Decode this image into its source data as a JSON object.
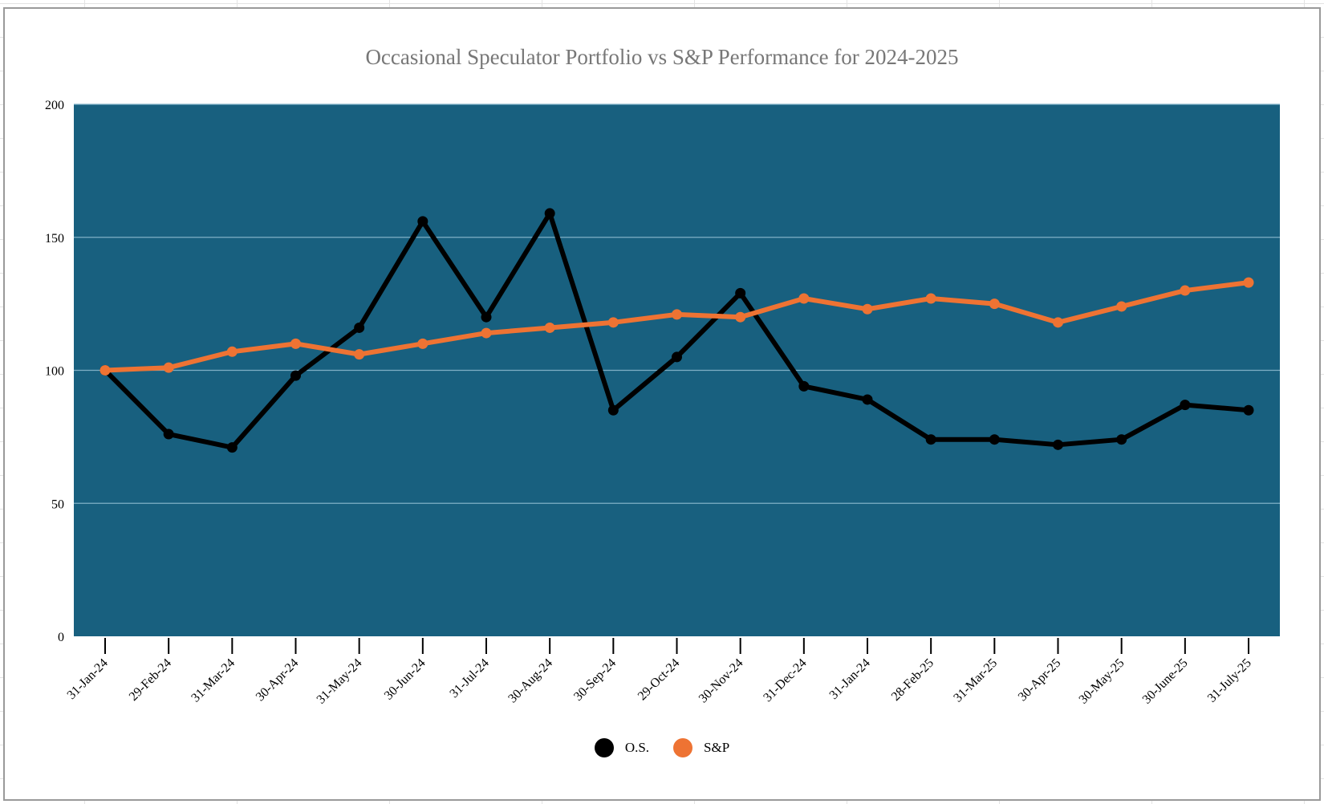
{
  "chart_data": {
    "type": "line",
    "title": "Occasional Speculator Portfolio vs S&P Performance for 2024-2025",
    "xlabel": "",
    "ylabel": "",
    "ylim": [
      0,
      200
    ],
    "yticks": [
      0,
      50,
      100,
      150,
      200
    ],
    "grid": true,
    "legend_position": "bottom",
    "plot_background": "#18607f",
    "categories": [
      "31-Jan-24",
      "29-Feb-24",
      "31-Mar-24",
      "30-Apr-24",
      "31-May-24",
      "30-Jun-24",
      "31-Jul-24",
      "30-Aug-24",
      "30-Sep-24",
      "29-Oct-24",
      "30-Nov-24",
      "31-Dec-24",
      "31-Jan-24",
      "28-Feb-25",
      "31-Mar-25",
      "30-Apr-25",
      "30-May-25",
      "30-June-25",
      "31-July-25"
    ],
    "series": [
      {
        "name": "O.S.",
        "color": "#000000",
        "values": [
          100,
          76,
          71,
          98,
          116,
          156,
          120,
          159,
          85,
          105,
          129,
          94,
          89,
          74,
          74,
          72,
          74,
          87,
          85
        ]
      },
      {
        "name": "S&P",
        "color": "#ee7333",
        "values": [
          100,
          101,
          107,
          110,
          106,
          110,
          114,
          116,
          118,
          121,
          120,
          127,
          123,
          127,
          125,
          118,
          124,
          130,
          133
        ]
      }
    ]
  }
}
